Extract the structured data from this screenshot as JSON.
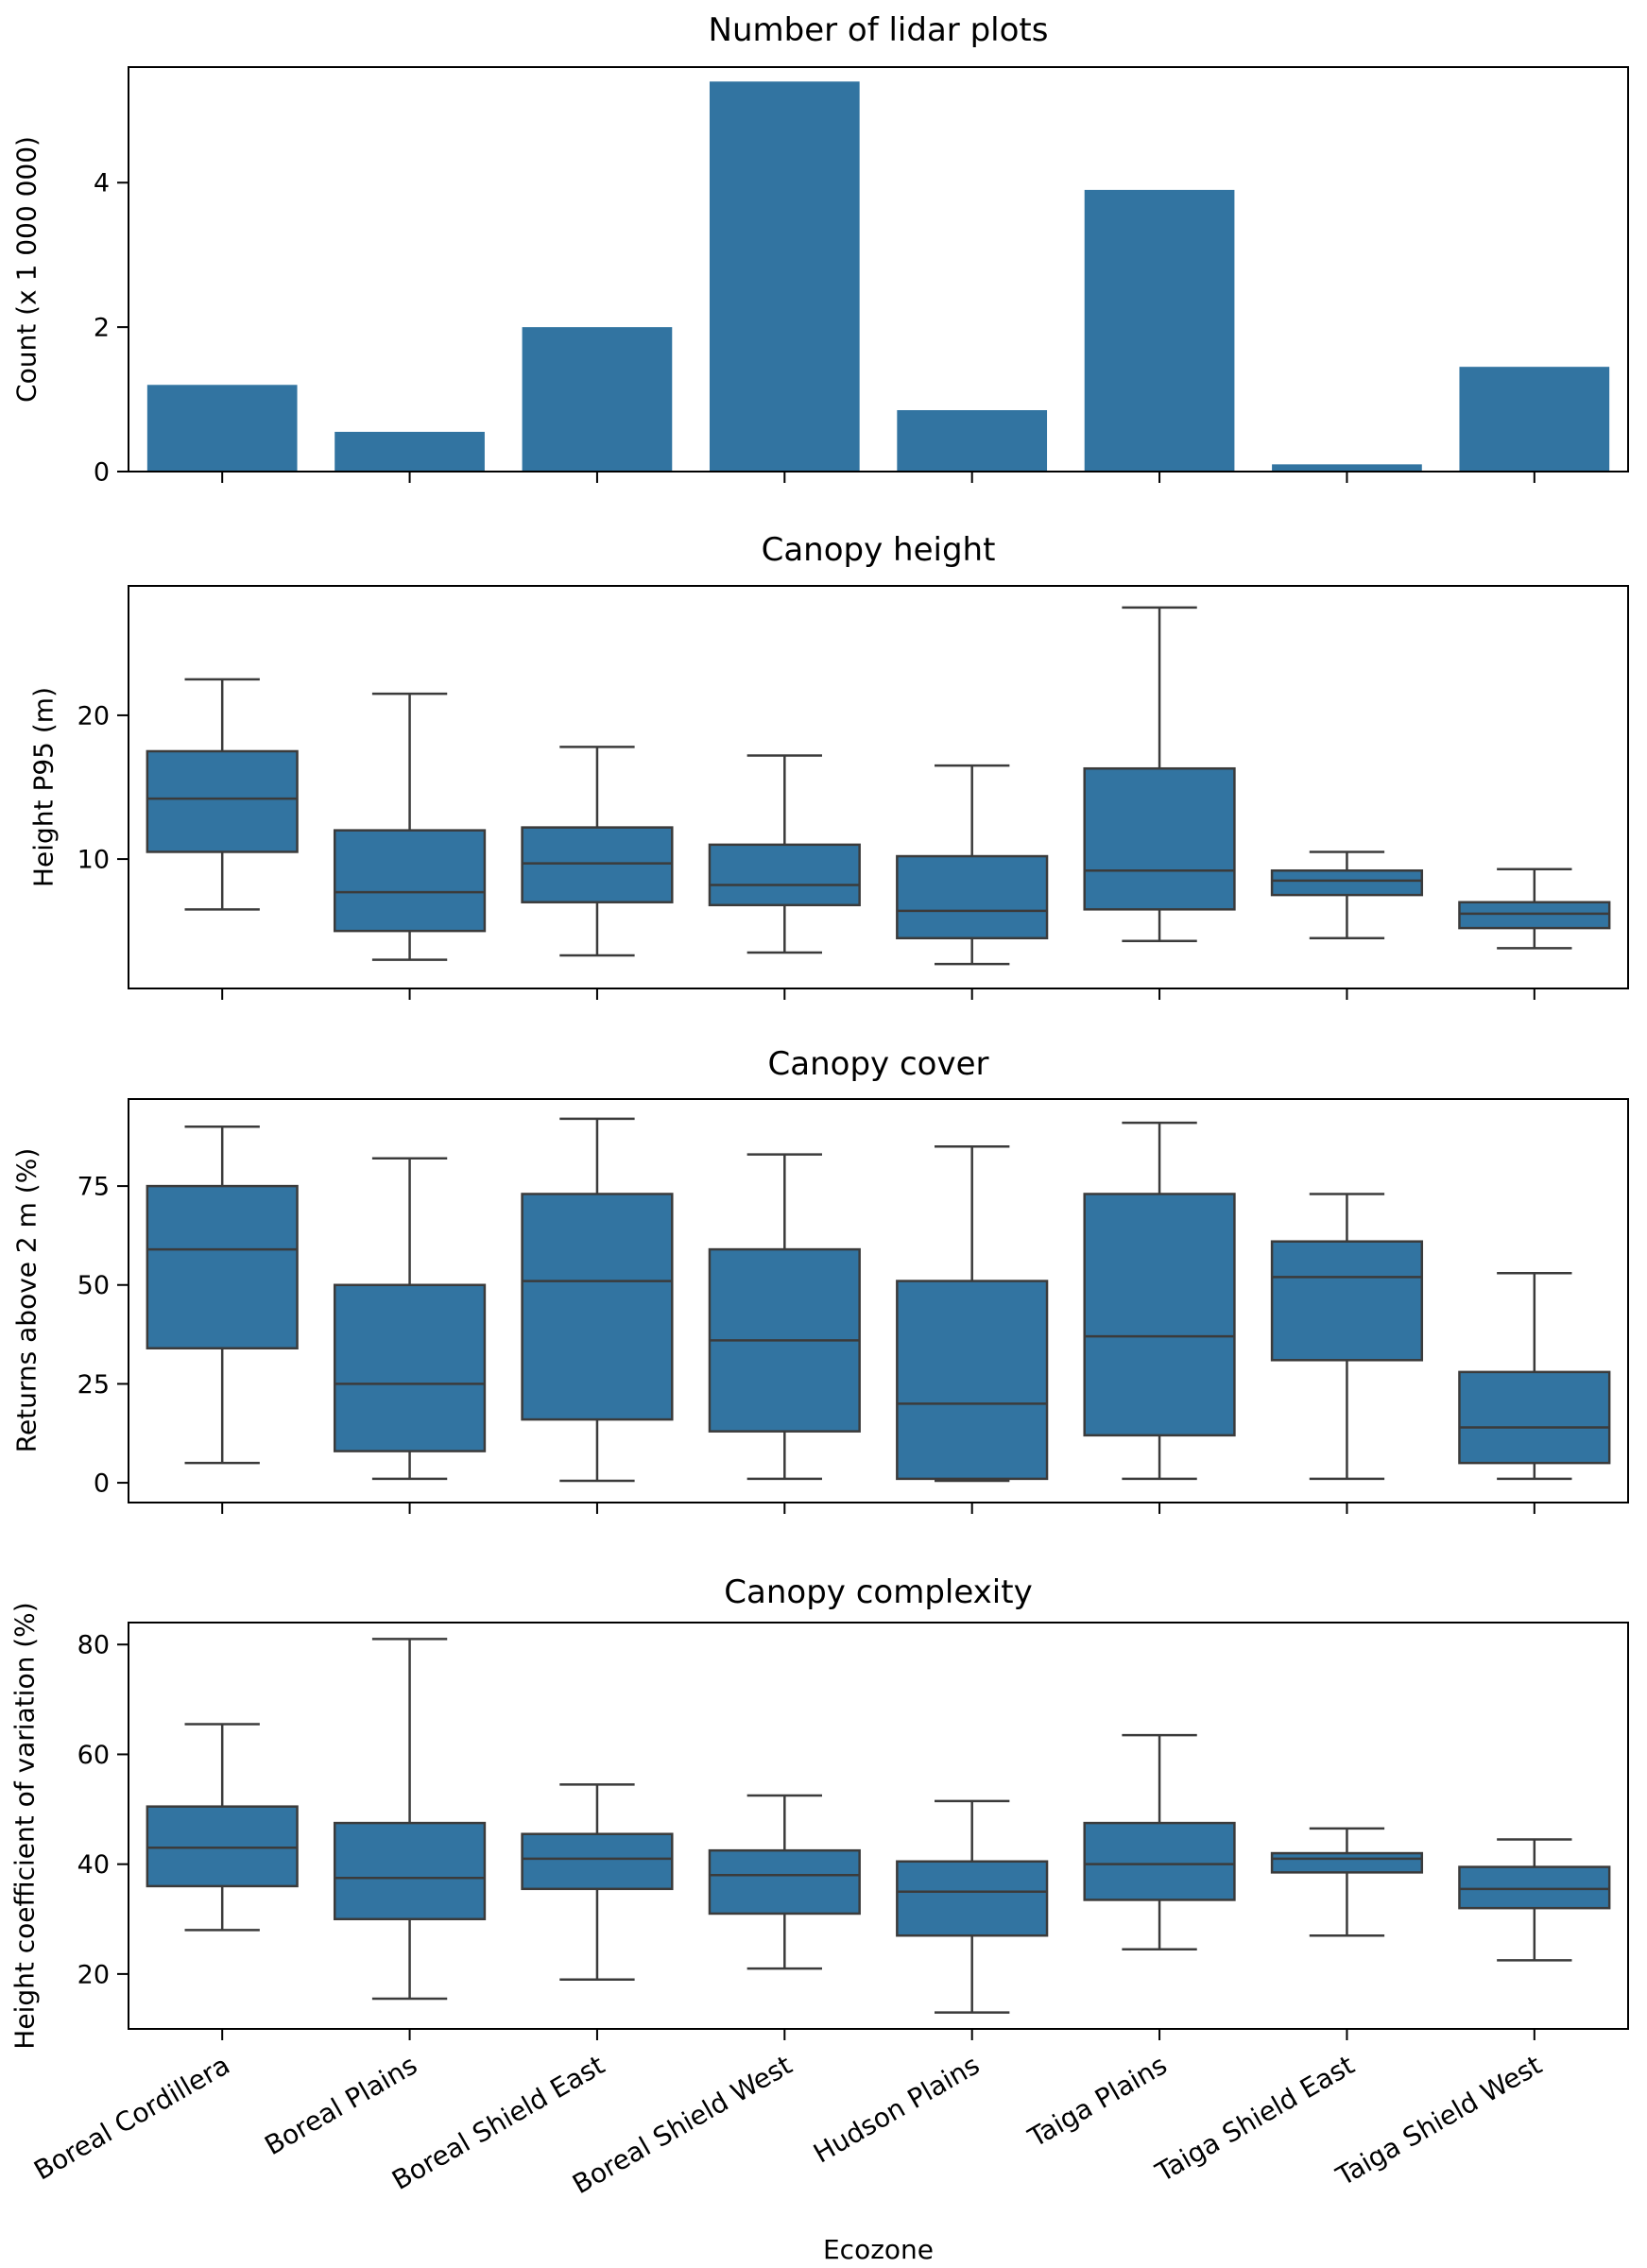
{
  "figure": {
    "background": "#ffffff"
  },
  "colors": {
    "fill": "#3274A1",
    "edge": "#3b3b3b",
    "spine": "#000000",
    "text": "#000000"
  },
  "categories": [
    "Boreal Cordillera",
    "Boreal Plains",
    "Boreal Shield East",
    "Boreal Shield West",
    "Hudson Plains",
    "Taiga Plains",
    "Taiga Shield East",
    "Taiga Shield West"
  ],
  "chart_data": [
    {
      "id": "lidar-plot-count",
      "type": "bar",
      "title": "Number of lidar plots",
      "xlabel": "",
      "ylabel": "Count (x 1 000 000)",
      "ylim": [
        0,
        5.6
      ],
      "yticks": [
        0,
        2,
        4
      ],
      "categories": [
        "Boreal Cordillera",
        "Boreal Plains",
        "Boreal Shield East",
        "Boreal Shield West",
        "Hudson Plains",
        "Taiga Plains",
        "Taiga Shield East",
        "Taiga Shield West"
      ],
      "values": [
        1.2,
        0.55,
        2.0,
        5.4,
        0.85,
        3.9,
        0.1,
        1.45
      ]
    },
    {
      "id": "canopy-height",
      "type": "box",
      "title": "Canopy height",
      "xlabel": "",
      "ylabel": "Height P95 (m)",
      "ylim": [
        1,
        29
      ],
      "yticks": [
        10,
        20
      ],
      "categories": [
        "Boreal Cordillera",
        "Boreal Plains",
        "Boreal Shield East",
        "Boreal Shield West",
        "Hudson Plains",
        "Taiga Plains",
        "Taiga Shield East",
        "Taiga Shield West"
      ],
      "series": [
        {
          "name": "Boreal Cordillera",
          "whislo": 6.5,
          "q1": 10.5,
          "med": 14.2,
          "q3": 17.5,
          "whishi": 22.5
        },
        {
          "name": "Boreal Plains",
          "whislo": 3.0,
          "q1": 5.0,
          "med": 7.7,
          "q3": 12.0,
          "whishi": 21.5
        },
        {
          "name": "Boreal Shield East",
          "whislo": 3.3,
          "q1": 7.0,
          "med": 9.7,
          "q3": 12.2,
          "whishi": 17.8
        },
        {
          "name": "Boreal Shield West",
          "whislo": 3.5,
          "q1": 6.8,
          "med": 8.2,
          "q3": 11.0,
          "whishi": 17.2
        },
        {
          "name": "Hudson Plains",
          "whislo": 2.7,
          "q1": 4.5,
          "med": 6.4,
          "q3": 10.2,
          "whishi": 16.5
        },
        {
          "name": "Taiga Plains",
          "whislo": 4.3,
          "q1": 6.5,
          "med": 9.2,
          "q3": 16.3,
          "whishi": 27.5
        },
        {
          "name": "Taiga Shield East",
          "whislo": 4.5,
          "q1": 7.5,
          "med": 8.5,
          "q3": 9.2,
          "whishi": 10.5
        },
        {
          "name": "Taiga Shield West",
          "whislo": 3.8,
          "q1": 5.2,
          "med": 6.2,
          "q3": 7.0,
          "whishi": 9.3
        }
      ]
    },
    {
      "id": "canopy-cover",
      "type": "box",
      "title": "Canopy cover",
      "xlabel": "",
      "ylabel": "Returns above 2 m (%)",
      "ylim": [
        -5,
        97
      ],
      "yticks": [
        0,
        25,
        50,
        75
      ],
      "categories": [
        "Boreal Cordillera",
        "Boreal Plains",
        "Boreal Shield East",
        "Boreal Shield West",
        "Hudson Plains",
        "Taiga Plains",
        "Taiga Shield East",
        "Taiga Shield West"
      ],
      "series": [
        {
          "name": "Boreal Cordillera",
          "whislo": 5,
          "q1": 34,
          "med": 59,
          "q3": 75,
          "whishi": 90
        },
        {
          "name": "Boreal Plains",
          "whislo": 1,
          "q1": 8,
          "med": 25,
          "q3": 50,
          "whishi": 82
        },
        {
          "name": "Boreal Shield East",
          "whislo": 0.5,
          "q1": 16,
          "med": 51,
          "q3": 73,
          "whishi": 92
        },
        {
          "name": "Boreal Shield West",
          "whislo": 1,
          "q1": 13,
          "med": 36,
          "q3": 59,
          "whishi": 83
        },
        {
          "name": "Hudson Plains",
          "whislo": 0.5,
          "q1": 1,
          "med": 20,
          "q3": 51,
          "whishi": 85
        },
        {
          "name": "Taiga Plains",
          "whislo": 1,
          "q1": 12,
          "med": 37,
          "q3": 73,
          "whishi": 91
        },
        {
          "name": "Taiga Shield East",
          "whislo": 1,
          "q1": 31,
          "med": 52,
          "q3": 61,
          "whishi": 73
        },
        {
          "name": "Taiga Shield West",
          "whislo": 1,
          "q1": 5,
          "med": 14,
          "q3": 28,
          "whishi": 53
        }
      ]
    },
    {
      "id": "canopy-complexity",
      "type": "box",
      "title": "Canopy complexity",
      "xlabel": "Ecozone",
      "ylabel": "Height coefficient of variation (%)",
      "ylim": [
        10,
        84
      ],
      "yticks": [
        20,
        40,
        60,
        80
      ],
      "categories": [
        "Boreal Cordillera",
        "Boreal Plains",
        "Boreal Shield East",
        "Boreal Shield West",
        "Hudson Plains",
        "Taiga Plains",
        "Taiga Shield East",
        "Taiga Shield West"
      ],
      "series": [
        {
          "name": "Boreal Cordillera",
          "whislo": 28,
          "q1": 36,
          "med": 43,
          "q3": 50.5,
          "whishi": 65.5
        },
        {
          "name": "Boreal Plains",
          "whislo": 15.5,
          "q1": 30,
          "med": 37.5,
          "q3": 47.5,
          "whishi": 81
        },
        {
          "name": "Boreal Shield East",
          "whislo": 19,
          "q1": 35.5,
          "med": 41,
          "q3": 45.5,
          "whishi": 54.5
        },
        {
          "name": "Boreal Shield West",
          "whislo": 21,
          "q1": 31,
          "med": 38,
          "q3": 42.5,
          "whishi": 52.5
        },
        {
          "name": "Hudson Plains",
          "whislo": 13,
          "q1": 27,
          "med": 35,
          "q3": 40.5,
          "whishi": 51.5
        },
        {
          "name": "Taiga Plains",
          "whislo": 24.5,
          "q1": 33.5,
          "med": 40,
          "q3": 47.5,
          "whishi": 63.5
        },
        {
          "name": "Taiga Shield East",
          "whislo": 27,
          "q1": 38.5,
          "med": 41,
          "q3": 42,
          "whishi": 46.5
        },
        {
          "name": "Taiga Shield West",
          "whislo": 22.5,
          "q1": 32,
          "med": 35.5,
          "q3": 39.5,
          "whishi": 44.5
        }
      ]
    }
  ]
}
